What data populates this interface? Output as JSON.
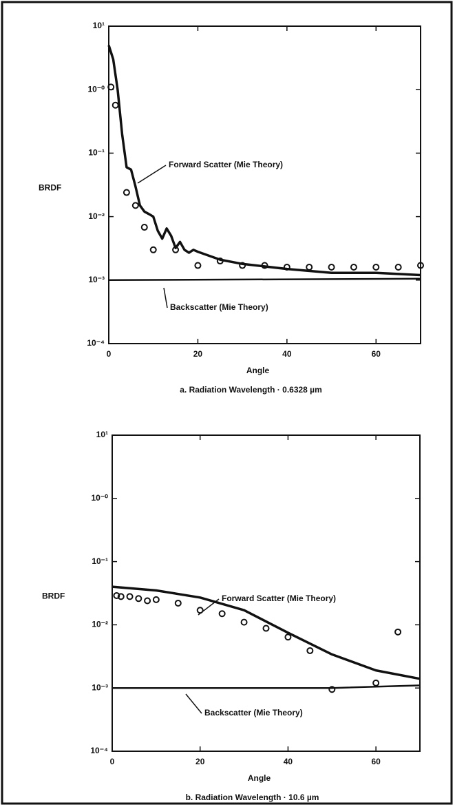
{
  "chart_data": [
    {
      "type": "line",
      "yscale": "log",
      "ylabel": "BRDF",
      "xlabel": "Angle",
      "caption": "a.  Radiation Wavelength · 0.6328 µm",
      "xlim": [
        0,
        70
      ],
      "xticks": [
        0,
        20,
        40,
        60
      ],
      "ylim": [
        0.0001,
        10
      ],
      "yticks": [
        {
          "value": 10,
          "label": "10¹"
        },
        {
          "value": 1,
          "label": "10⁻⁰"
        },
        {
          "value": 0.1,
          "label": "10⁻¹"
        },
        {
          "value": 0.01,
          "label": "10⁻²"
        },
        {
          "value": 0.001,
          "label": "10⁻³"
        },
        {
          "value": 0.0001,
          "label": "10⁻⁴"
        }
      ],
      "series": [
        {
          "name": "Forward Scatter (Mie Theory)",
          "color": "#111111",
          "style": "line",
          "x": [
            0,
            1,
            2,
            3,
            4,
            5,
            6,
            7,
            8,
            9,
            10,
            11,
            12,
            13,
            14,
            15,
            16,
            17,
            18,
            19,
            20,
            25,
            30,
            40,
            50,
            60,
            70
          ],
          "values": [
            5,
            3,
            1,
            0.2,
            0.06,
            0.055,
            0.03,
            0.015,
            0.012,
            0.011,
            0.01,
            0.006,
            0.0045,
            0.0065,
            0.005,
            0.0032,
            0.004,
            0.003,
            0.0027,
            0.003,
            0.0028,
            0.0021,
            0.0018,
            0.0015,
            0.0013,
            0.0013,
            0.0012
          ]
        },
        {
          "name": "Backscatter (Mie Theory)",
          "color": "#111111",
          "style": "line",
          "x": [
            0,
            70
          ],
          "values": [
            0.001,
            0.00105
          ]
        },
        {
          "color": "#111111",
          "style": "points",
          "x": [
            0.5,
            1.5,
            4,
            6,
            8,
            10,
            15,
            20,
            25,
            30,
            35,
            40,
            45,
            50,
            55,
            60,
            65,
            70
          ],
          "values": [
            1.1,
            0.57,
            0.024,
            0.015,
            0.0068,
            0.003,
            0.003,
            0.0017,
            0.002,
            0.0017,
            0.0017,
            0.0016,
            0.0016,
            0.0016,
            0.0016,
            0.0016,
            0.0016,
            0.0017
          ]
        }
      ]
    },
    {
      "type": "line",
      "yscale": "log",
      "ylabel": "BRDF",
      "xlabel": "Angle",
      "caption": "b.  Radiation Wavelength · 10.6 µm",
      "xlim": [
        0,
        70
      ],
      "xticks": [
        0,
        20,
        40,
        60
      ],
      "ylim": [
        0.0001,
        10
      ],
      "yticks": [
        {
          "value": 10,
          "label": "10¹"
        },
        {
          "value": 1,
          "label": "10⁻⁰"
        },
        {
          "value": 0.1,
          "label": "10⁻¹"
        },
        {
          "value": 0.01,
          "label": "10⁻²"
        },
        {
          "value": 0.001,
          "label": "10⁻³"
        },
        {
          "value": 0.0001,
          "label": "10⁻⁴"
        }
      ],
      "series": [
        {
          "name": "Forward Scatter (Mie Theory)",
          "color": "#111111",
          "style": "line",
          "x": [
            0,
            10,
            20,
            30,
            40,
            50,
            60,
            70
          ],
          "values": [
            0.04,
            0.035,
            0.027,
            0.017,
            0.0075,
            0.0034,
            0.0019,
            0.0014
          ]
        },
        {
          "name": "Backscatter (Mie Theory)",
          "color": "#111111",
          "style": "line",
          "x": [
            0,
            50,
            70
          ],
          "values": [
            0.001,
            0.001,
            0.0011
          ]
        },
        {
          "color": "#111111",
          "style": "points",
          "x": [
            1,
            2,
            4,
            6,
            8,
            10,
            15,
            20,
            25,
            30,
            35,
            40,
            45,
            50,
            60,
            65
          ],
          "values": [
            0.029,
            0.028,
            0.028,
            0.026,
            0.024,
            0.025,
            0.022,
            0.017,
            0.015,
            0.011,
            0.0088,
            0.0064,
            0.0039,
            0.00095,
            0.0012,
            0.0077
          ]
        }
      ]
    }
  ]
}
